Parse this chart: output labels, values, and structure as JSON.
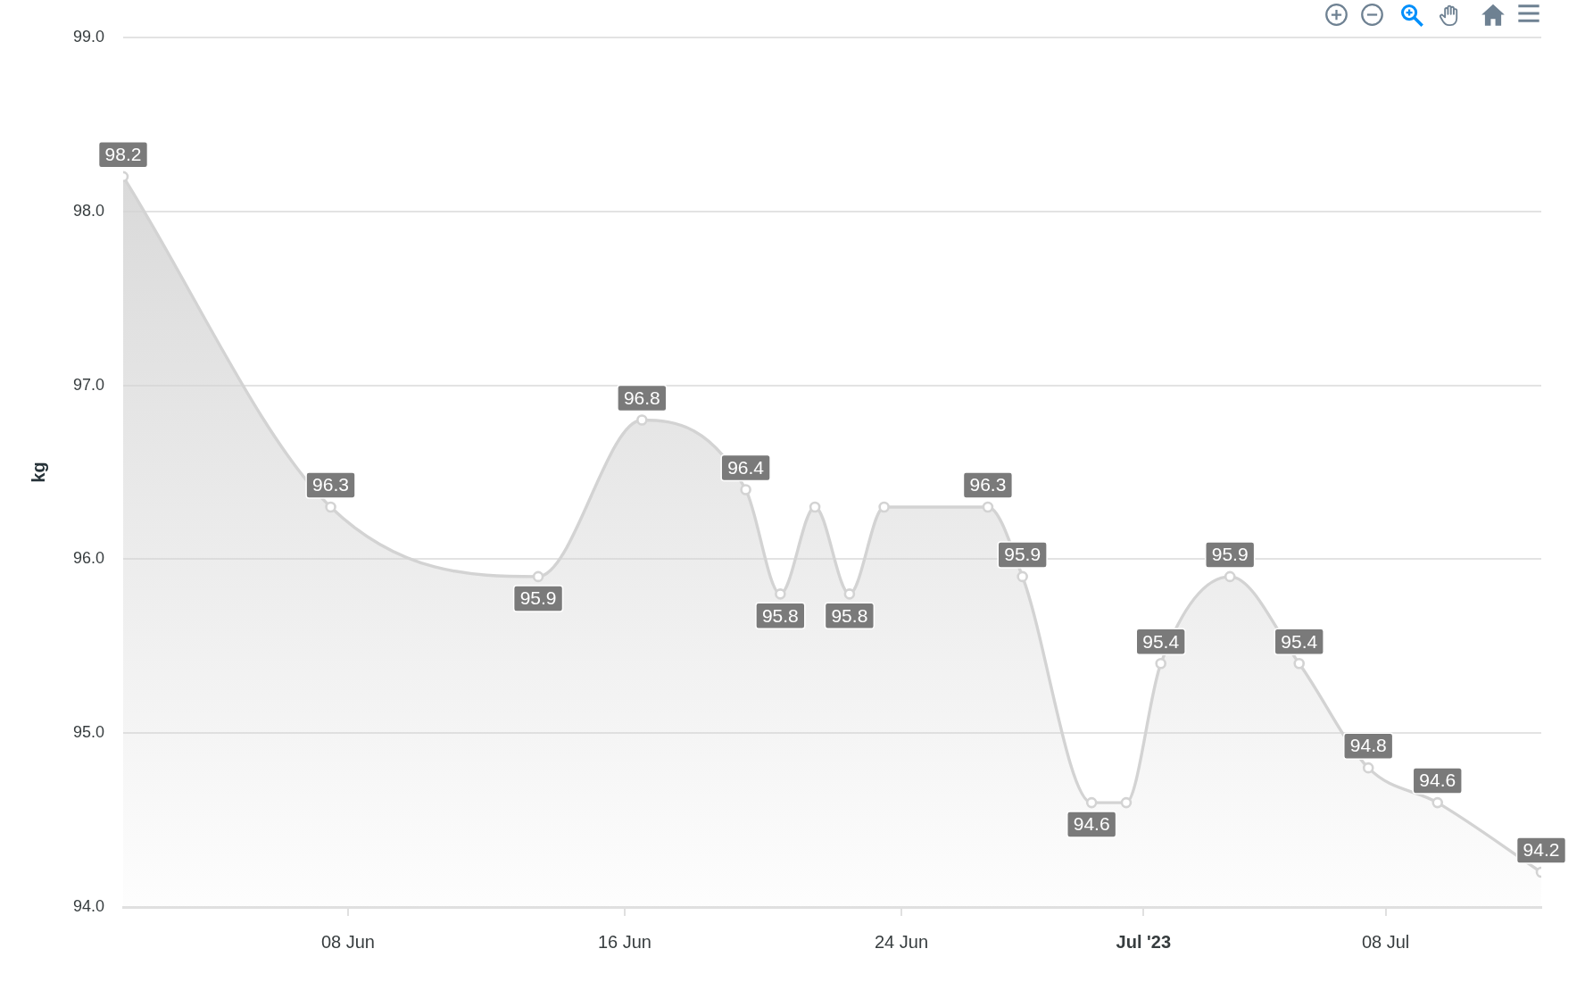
{
  "chart_data": {
    "type": "area",
    "ylabel": "kg",
    "x": [
      "2023-06-01T12:00",
      "2023-06-07T12:00",
      "2023-06-13T12:00",
      "2023-06-16T12:00",
      "2023-06-19T12:00",
      "2023-06-20T12:00",
      "2023-06-21T12:00",
      "2023-06-22T12:00",
      "2023-06-23T12:00",
      "2023-06-26T12:00",
      "2023-06-27T12:00",
      "2023-06-29T12:00",
      "2023-06-30T12:00",
      "2023-07-01T12:00",
      "2023-07-03T12:00",
      "2023-07-05T12:00",
      "2023-07-07T12:00",
      "2023-07-09T12:00",
      "2023-07-12T12:00"
    ],
    "values": [
      98.2,
      96.3,
      95.9,
      96.8,
      96.4,
      95.8,
      96.3,
      95.8,
      96.3,
      96.3,
      95.9,
      94.6,
      94.6,
      95.4,
      95.9,
      95.4,
      94.8,
      94.6,
      94.2
    ],
    "value_labels": [
      "98.2",
      "96.3",
      "95.9",
      "96.8",
      "96.4",
      "95.8",
      null,
      "95.8",
      null,
      "96.3",
      "95.9",
      "94.6",
      null,
      "95.4",
      "95.9",
      "95.4",
      "94.8",
      "94.6",
      "94.2"
    ],
    "color": "#d3d3d3",
    "xlim": [
      "2023-06-01T12:00",
      "2023-07-12T12:00"
    ],
    "xticks": [
      {
        "value": "2023-06-08",
        "label": "08 Jun"
      },
      {
        "value": "2023-06-16",
        "label": "16 Jun"
      },
      {
        "value": "2023-06-24",
        "label": "24 Jun"
      },
      {
        "value": "2023-07-01",
        "label": "Jul '23"
      },
      {
        "value": "2023-07-08",
        "label": "08 Jul"
      }
    ],
    "ylim": [
      94,
      99
    ],
    "yticks": [
      {
        "value": 94,
        "label": "94.0"
      },
      {
        "value": 95,
        "label": "95.0"
      },
      {
        "value": 96,
        "label": "96.0"
      },
      {
        "value": 97,
        "label": "97.0"
      },
      {
        "value": 98,
        "label": "98.0"
      },
      {
        "value": 99,
        "label": "99.0"
      }
    ],
    "grid": "y",
    "marker": "circle"
  }
}
